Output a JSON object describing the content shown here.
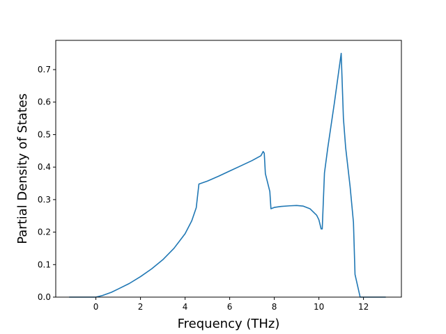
{
  "chart_data": {
    "type": "line",
    "title": "",
    "xlabel": "Frequency (THz)",
    "ylabel": "Partial Density of States",
    "xlim": [
      -1.8,
      13.7
    ],
    "ylim": [
      0,
      0.79
    ],
    "grid": false,
    "xticks": [
      0,
      2,
      4,
      6,
      8,
      10,
      12
    ],
    "yticks": [
      0.0,
      0.1,
      0.2,
      0.3,
      0.4,
      0.5,
      0.6,
      0.7
    ],
    "xtick_labels": [
      "0",
      "2",
      "4",
      "6",
      "8",
      "10",
      "12"
    ],
    "ytick_labels": [
      "0.0",
      "0.1",
      "0.2",
      "0.3",
      "0.4",
      "0.5",
      "0.6",
      "0.7"
    ],
    "series": [
      {
        "color": "#1f77b4",
        "x": [
          -1.2,
          0.0,
          0.3,
          0.7,
          1.0,
          1.5,
          2.0,
          2.5,
          3.0,
          3.5,
          4.0,
          4.3,
          4.5,
          4.62,
          5.0,
          5.5,
          6.0,
          6.5,
          7.0,
          7.4,
          7.5,
          7.55,
          7.6,
          7.8,
          7.85,
          8.0,
          8.3,
          8.7,
          9.0,
          9.3,
          9.6,
          9.9,
          10.0,
          10.1,
          10.15,
          10.25,
          10.4,
          10.7,
          11.0,
          11.1,
          11.2,
          11.4,
          11.55,
          11.62,
          11.85,
          12.0,
          13.0
        ],
        "y": [
          0.0,
          0.0,
          0.005,
          0.015,
          0.025,
          0.042,
          0.063,
          0.087,
          0.115,
          0.15,
          0.195,
          0.235,
          0.275,
          0.348,
          0.357,
          0.372,
          0.388,
          0.404,
          0.42,
          0.435,
          0.448,
          0.443,
          0.38,
          0.325,
          0.272,
          0.276,
          0.279,
          0.281,
          0.282,
          0.28,
          0.272,
          0.252,
          0.238,
          0.21,
          0.21,
          0.382,
          0.46,
          0.6,
          0.75,
          0.55,
          0.46,
          0.34,
          0.23,
          0.07,
          0.0,
          0.0,
          0.0
        ]
      }
    ]
  }
}
